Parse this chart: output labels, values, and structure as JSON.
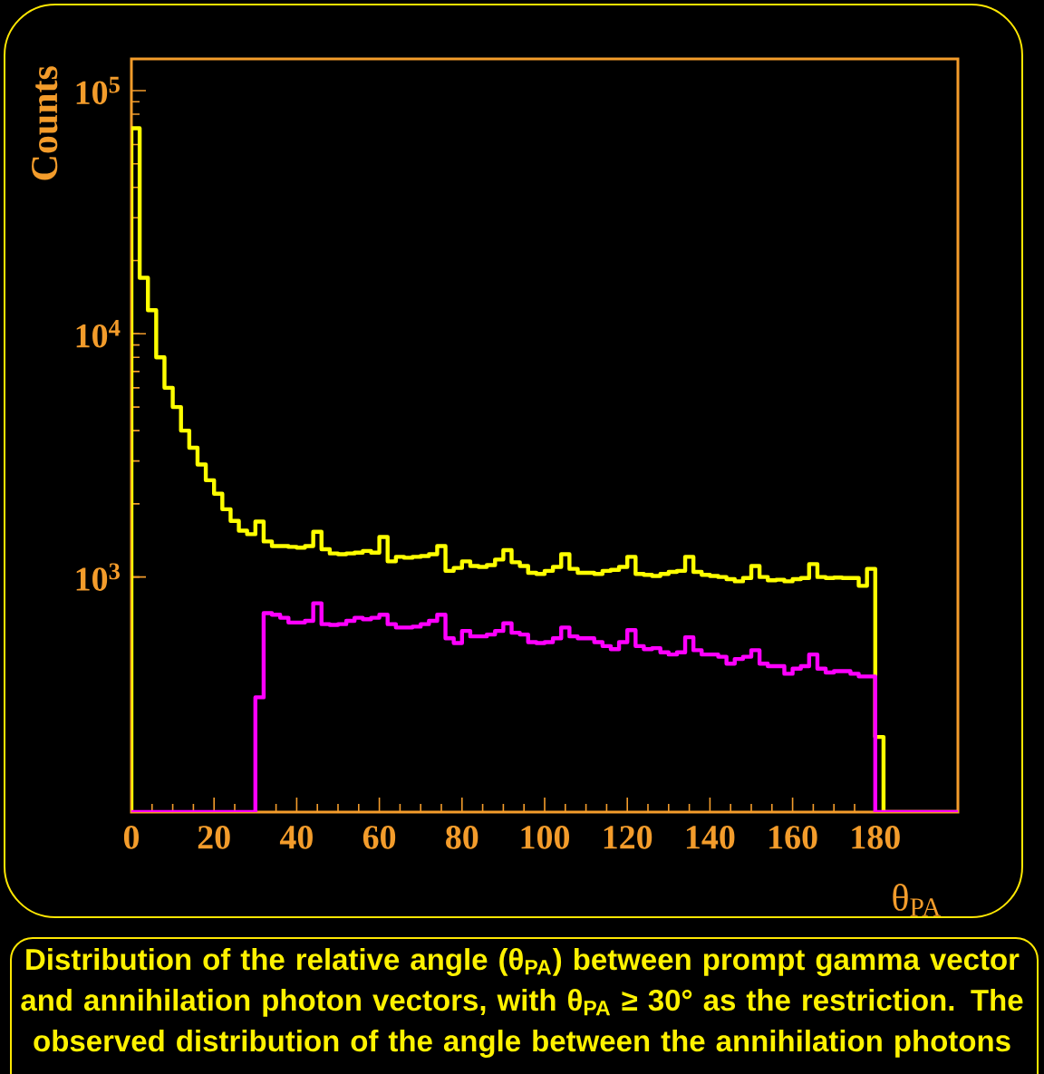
{
  "chart_data": {
    "type": "histogram",
    "xlabel": "θ$_{PA}$",
    "ylabel": "Counts",
    "bins": [
      0,
      2,
      4,
      6,
      8,
      10,
      12,
      14,
      16,
      18,
      20,
      22,
      24,
      26,
      28,
      30,
      32,
      34,
      36,
      38,
      40,
      42,
      44,
      46,
      48,
      50,
      52,
      54,
      56,
      58,
      60,
      62,
      64,
      66,
      68,
      70,
      72,
      74,
      76,
      78,
      80,
      82,
      84,
      86,
      88,
      90,
      92,
      94,
      96,
      98,
      100,
      102,
      104,
      106,
      108,
      110,
      112,
      114,
      116,
      118,
      120,
      122,
      124,
      126,
      128,
      130,
      132,
      134,
      136,
      138,
      140,
      142,
      144,
      146,
      148,
      150,
      152,
      154,
      156,
      158,
      160,
      162,
      164,
      166,
      168,
      170,
      172,
      174,
      176,
      178,
      180,
      182,
      184,
      186,
      188,
      190,
      192,
      194,
      196,
      198,
      200
    ],
    "series": [
      {
        "color": "#ffff00",
        "values": [
          70000,
          17000,
          12500,
          8000,
          6000,
          5000,
          4000,
          3400,
          2900,
          2500,
          2200,
          1900,
          1700,
          1550,
          1500,
          1690,
          1400,
          1340,
          1340,
          1330,
          1320,
          1340,
          1535,
          1300,
          1250,
          1240,
          1250,
          1260,
          1280,
          1260,
          1460,
          1160,
          1210,
          1200,
          1210,
          1220,
          1240,
          1340,
          1060,
          1090,
          1160,
          1110,
          1100,
          1120,
          1180,
          1290,
          1150,
          1110,
          1040,
          1030,
          1060,
          1100,
          1240,
          1080,
          1040,
          1040,
          1030,
          1060,
          1070,
          1100,
          1210,
          1030,
          1020,
          1010,
          1030,
          1050,
          1060,
          1210,
          1050,
          1020,
          1010,
          1000,
          980,
          960,
          990,
          1110,
          1000,
          970,
          975,
          960,
          980,
          990,
          1130,
          1000,
          990,
          995,
          990,
          990,
          920,
          1080,
          220,
          null,
          null,
          null,
          null,
          null,
          null,
          null,
          null,
          null
        ]
      },
      {
        "color": "#ff00ff",
        "values": [
          null,
          null,
          null,
          null,
          null,
          null,
          null,
          null,
          null,
          null,
          null,
          null,
          null,
          null,
          null,
          320,
          710,
          700,
          680,
          650,
          650,
          660,
          780,
          640,
          635,
          640,
          660,
          680,
          670,
          680,
          700,
          640,
          620,
          620,
          625,
          640,
          660,
          700,
          560,
          535,
          600,
          570,
          570,
          580,
          600,
          645,
          590,
          580,
          540,
          535,
          540,
          560,
          620,
          570,
          560,
          560,
          540,
          520,
          505,
          540,
          605,
          520,
          505,
          510,
          490,
          480,
          490,
          565,
          500,
          480,
          480,
          470,
          440,
          460,
          470,
          500,
          440,
          430,
          430,
          400,
          420,
          430,
          480,
          420,
          405,
          410,
          410,
          400,
          390,
          390,
          null,
          null,
          null,
          null,
          null,
          null,
          null,
          null,
          null,
          null
        ]
      }
    ],
    "xlim": [
      0,
      200
    ],
    "xticks": [
      0,
      20,
      40,
      60,
      80,
      100,
      120,
      140,
      160,
      180
    ],
    "ylim": [
      108,
      135000
    ],
    "log": true,
    "yticks": [
      {
        "value": 1000,
        "label": "10$^{3}$"
      },
      {
        "value": 10000,
        "label": "10$^{4}$"
      },
      {
        "value": 100000,
        "label": "10$^{5}$"
      }
    ],
    "annotations": [
      "Distribution of the relative angle (θ$_{PA}$) between prompt gamma vector and annihilation photon vectors, with θ$_{PA}$ ≥ 30° as the restriction. The observed distribution of the angle between the annihilation photons"
    ]
  }
}
